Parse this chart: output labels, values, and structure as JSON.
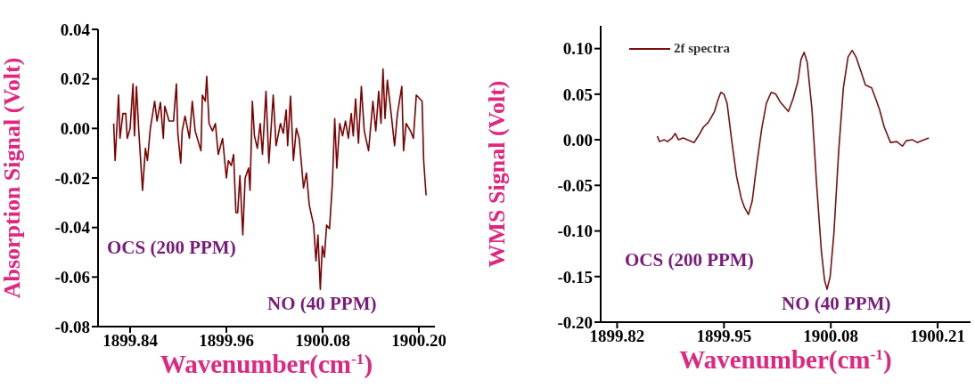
{
  "chart_data": [
    {
      "type": "line",
      "xlabel": "Wavenumber(cm$^{-1}$)",
      "ylabel": "Absorption Signal (Volt)",
      "xlim": [
        1899.8,
        1900.22
      ],
      "ylim": [
        -0.08,
        0.04
      ],
      "xticks": [
        1899.84,
        1899.96,
        1900.08,
        {
          "value": 1900.2,
          "label": "1900.20"
        }
      ],
      "yticks": [
        -0.08,
        -0.06,
        -0.04,
        -0.02,
        {
          "value": 0,
          "label": "0.00"
        },
        0.02,
        0.04
      ],
      "grid": false,
      "legend": false,
      "marker": "none",
      "line_style": "solid",
      "annotations": [
        "OCS (200 PPM)",
        "NO (40 PPM)"
      ],
      "series": [
        {
          "color": "#800000",
          "x": [
            1899.8195,
            1899.8213,
            1899.8256,
            1899.8274,
            1899.831,
            1899.8346,
            1899.8364,
            1899.84,
            1899.8436,
            1899.8454,
            1899.8479,
            1899.8508,
            1899.8555,
            1899.8591,
            1899.8616,
            1899.8652,
            1899.8706,
            1899.8735,
            1899.8778,
            1899.8814,
            1899.8832,
            1899.8886,
            1899.8941,
            1899.8977,
            1899.8995,
            1899.9031,
            1899.9049,
            1899.9085,
            1899.9139,
            1899.9175,
            1899.9211,
            1899.9283,
            1899.9301,
            1899.9337,
            1899.9355,
            1899.9384,
            1899.9427,
            1899.9463,
            1899.9499,
            1899.9553,
            1899.96,
            1899.9625,
            1899.9661,
            1899.969,
            1899.9719,
            1899.9741,
            1899.9769,
            1899.9805,
            1899.9834,
            1899.9877,
            1899.9895,
            1899.9924,
            1899.995,
            1899.9986,
            1900.0022,
            1900.005,
            1900.0094,
            1900.013,
            1900.0184,
            1900.022,
            1900.0274,
            1900.031,
            1900.0346,
            1900.0364,
            1900.04,
            1900.0436,
            1900.0472,
            1900.0508,
            1900.0562,
            1900.0598,
            1900.0634,
            1900.0688,
            1900.0717,
            1900.0742,
            1900.0771,
            1900.0796,
            1900.0822,
            1900.085,
            1900.0886,
            1900.0922,
            1900.0951,
            1900.0977,
            1900.1013,
            1900.1049,
            1900.1085,
            1900.1121,
            1900.1157,
            1900.1182,
            1900.1211,
            1900.1247,
            1900.1283,
            1900.1319,
            1900.1373,
            1900.1427,
            1900.1463,
            1900.1499,
            1900.1528,
            1900.1553,
            1900.1578,
            1900.1607,
            1900.1661,
            1900.1697,
            1900.1733,
            1900.1787,
            1900.1809,
            1900.1841,
            1900.1895,
            1900.1932,
            1900.1968,
            1900.204,
            1900.206,
            1900.209
          ],
          "values": [
            0.002,
            -0.013,
            0.0135,
            -0.004,
            0.006,
            0.006,
            -0.004,
            0,
            0.018,
            -0.003,
            0.017,
            -0.001,
            -0.025,
            -0.008,
            -0.013,
            0,
            0.011,
            0.003,
            0.0105,
            -0.004,
            0.009,
            0.003,
            0.003,
            0.018,
            -0.002,
            -0.014,
            -0.001,
            0.005,
            -0.004,
            0.011,
            -0.001,
            -0.009,
            0.0135,
            0.011,
            0.021,
            0.002,
            -0.001,
            0.002,
            -0.0105,
            -0.004,
            -0.02,
            -0.013,
            -0.015,
            -0.0105,
            -0.034,
            -0.034,
            -0.019,
            -0.043,
            -0.02,
            -0.016,
            -0.025,
            0.011,
            -0.003,
            -0.008,
            0.002,
            -0.0105,
            0.015,
            -0.014,
            0.0135,
            -0.007,
            0.002,
            -0.002,
            0.0075,
            -0.007,
            0.013,
            -0.013,
            0,
            -0.004,
            -0.024,
            -0.018,
            -0.031,
            -0.039,
            -0.0535,
            -0.043,
            -0.065,
            -0.0475,
            -0.052,
            -0.039,
            -0.0405,
            -0.022,
            0.004,
            -0.016,
            0.002,
            -0.003,
            0.003,
            -0.004,
            0.006,
            -0.003,
            0.012,
            -0.006,
            0.017,
            -0.001,
            -0.009,
            0.011,
            -0.001,
            0.015,
            0.002,
            0.024,
            0.004,
            0.0195,
            0.004,
            -0.007,
            0.006,
            0.017,
            -0.009,
            0.002,
            -0.001,
            -0.004,
            0.0135,
            0.011,
            -0.013,
            -0.027
          ]
        }
      ]
    },
    {
      "type": "line",
      "xlabel": "Wavenumber(cm$^{-1}$)",
      "ylabel": "WMS Signal (Volt)",
      "xlim": [
        1899.8,
        1900.25
      ],
      "ylim": [
        -0.2,
        0.125
      ],
      "xticks": [
        1899.82,
        1899.95,
        1900.08,
        1900.21
      ],
      "yticks": [
        {
          "value": -0.2,
          "label": "-0.20"
        },
        -0.15,
        {
          "value": -0.1,
          "label": "-0.10"
        },
        -0.05,
        {
          "value": 0,
          "label": "0.00"
        },
        0.05,
        {
          "value": 0.1,
          "label": "0.10"
        }
      ],
      "grid": false,
      "legend": "top left",
      "marker": "none",
      "line_style": "solid",
      "annotations": [
        "OCS (200 PPM)",
        "NO (40 PPM)"
      ],
      "series": [
        {
          "name": "2f spectra",
          "color": "#7a1010",
          "x": [
            1899.8689,
            1899.8716,
            1899.8774,
            1899.8812,
            1899.8869,
            1899.8907,
            1899.8946,
            1899.9003,
            1899.9079,
            1899.9137,
            1899.9194,
            1899.9251,
            1899.9309,
            1899.9385,
            1899.9424,
            1899.9462,
            1899.95,
            1899.9538,
            1899.9596,
            1899.9653,
            1899.971,
            1899.9749,
            1899.9798,
            1899.9844,
            1899.9901,
            1899.9959,
            1900.0016,
            1900.0074,
            1900.0131,
            1900.0188,
            1900.0284,
            1900.0341,
            1900.0399,
            1900.0437,
            1900.0475,
            1900.0513,
            1900.0571,
            1900.0628,
            1900.0685,
            1900.0724,
            1900.0754,
            1900.0792,
            1900.0838,
            1900.0896,
            1900.0953,
            1900.101,
            1900.106,
            1900.1106,
            1900.1163,
            1900.1221,
            1900.1297,
            1900.1354,
            1900.1393,
            1900.145,
            1900.1526,
            1900.1603,
            1900.1671,
            1900.1718,
            1900.1794,
            1900.1851,
            1900.1909,
            1900.1993
          ],
          "values": [
            0.004,
            -0.002,
            0,
            -0.002,
            0.002,
            0.007,
            0,
            0.002,
            -0.001,
            -0.003,
            0.005,
            0.014,
            0.019,
            0.031,
            0.043,
            0.052,
            0.05,
            0.04,
            -0.002,
            -0.04,
            -0.064,
            -0.074,
            -0.082,
            -0.067,
            -0.026,
            0.012,
            0.04,
            0.052,
            0.05,
            0.041,
            0.031,
            0.045,
            0.064,
            0.088,
            0.096,
            0.085,
            0.033,
            -0.05,
            -0.122,
            -0.154,
            -0.164,
            -0.15,
            -0.102,
            -0.012,
            0.057,
            0.091,
            0.098,
            0.091,
            0.076,
            0.06,
            0.057,
            0.043,
            0.033,
            0.014,
            -0.003,
            -0.002,
            -0.007,
            -0.001,
            0,
            -0.003,
            -0.001,
            0.002
          ]
        }
      ]
    }
  ]
}
